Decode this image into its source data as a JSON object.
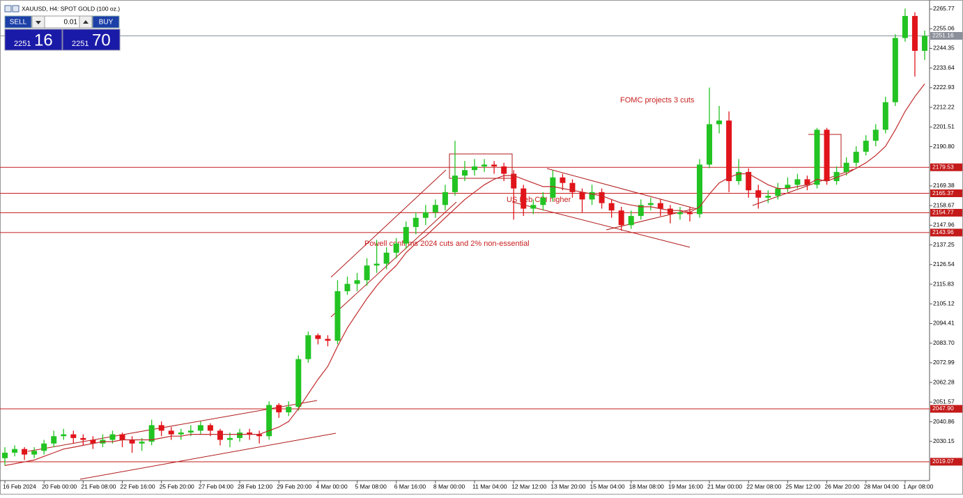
{
  "toolbar": {
    "title": "XAUUSD, H4:  SPOT GOLD (100 oz.)",
    "sell": "SELL",
    "buy": "BUY",
    "lot": "0.01",
    "bid_big": "2251",
    "bid_small": "16",
    "ask_big": "2251",
    "ask_small": "70"
  },
  "chart_data": {
    "type": "candlestick",
    "annotations": [
      "FOMC projects 3 cuts",
      "US Feb CPI higher",
      "Powell confirms 2024 cuts and 2% non-essential"
    ],
    "categories": [
      "16 Feb 2024",
      null,
      null,
      null,
      "20 Feb 00:00",
      null,
      null,
      null,
      "21 Feb 08:00",
      null,
      null,
      null,
      "22 Feb 16:00",
      null,
      null,
      null,
      "25 Feb 20:00",
      null,
      null,
      null,
      "27 Feb 04:00",
      null,
      null,
      null,
      "28 Feb 12:00",
      null,
      null,
      null,
      "29 Feb 20:00",
      null,
      null,
      null,
      "4 Mar 00:00",
      null,
      null,
      null,
      "5 Mar 08:00",
      null,
      null,
      null,
      "6 Mar 16:00",
      null,
      null,
      null,
      "8 Mar 00:00",
      null,
      null,
      null,
      "11 Mar 04:00",
      null,
      null,
      null,
      "12 Mar 12:00",
      null,
      null,
      null,
      "13 Mar 20:00",
      null,
      null,
      null,
      "15 Mar 04:00",
      null,
      null,
      null,
      "18 Mar 08:00",
      null,
      null,
      null,
      "19 Mar 16:00",
      null,
      null,
      null,
      "21 Mar 00:00",
      null,
      null,
      null,
      "22 Mar 08:00",
      null,
      null,
      null,
      "25 Mar 12:00",
      null,
      null,
      null,
      "26 Mar 20:00",
      null,
      null,
      null,
      "28 Mar 04:00",
      null,
      null,
      null,
      "1 Apr 08:00",
      null,
      null
    ],
    "open": [
      2021,
      2024,
      2026,
      2023,
      2025,
      2029,
      2033,
      2034,
      2032,
      2031,
      2029,
      2031,
      2034,
      2031,
      2029,
      2030,
      2039,
      2036,
      2034,
      2035,
      2036,
      2039,
      2036,
      2031,
      2032,
      2035,
      2034,
      2033,
      2050,
      2046,
      2049,
      2075,
      2088,
      2086,
      2085,
      2112,
      2116,
      2118,
      2126,
      2127,
      2133,
      2138,
      2147,
      2152,
      2155,
      2159,
      2166,
      2175,
      2178,
      2180,
      2181,
      2180,
      2176,
      2168,
      2157,
      2159,
      2163,
      2174,
      2171,
      2166,
      2162,
      2166,
      2160,
      2156,
      2148,
      2153,
      2159,
      2160,
      2157,
      2154,
      2155,
      2154,
      2181,
      2203,
      2205,
      2172,
      2177,
      2167,
      2163,
      2164,
      2168,
      2170,
      2173,
      2170,
      2200,
      2172,
      2177,
      2182,
      2188,
      2194,
      2200,
      2215,
      2250,
      2262,
      2243
    ],
    "high": [
      2027,
      2028,
      2027,
      2027,
      2031,
      2036,
      2037,
      2036,
      2034,
      2033,
      2034,
      2036,
      2035,
      2033,
      2032,
      2042,
      2041,
      2038,
      2037,
      2039,
      2041,
      2040,
      2037,
      2035,
      2037,
      2037,
      2036,
      2052,
      2051,
      2052,
      2077,
      2090,
      2089,
      2088,
      2118,
      2120,
      2122,
      2130,
      2140,
      2136,
      2141,
      2150,
      2155,
      2159,
      2162,
      2170,
      2194,
      2183,
      2184,
      2184,
      2183,
      2182,
      2178,
      2170,
      2162,
      2166,
      2178,
      2176,
      2173,
      2168,
      2170,
      2168,
      2162,
      2158,
      2156,
      2162,
      2163,
      2162,
      2159,
      2158,
      2158,
      2184,
      2223,
      2213,
      2210,
      2184,
      2179,
      2170,
      2167,
      2171,
      2174,
      2176,
      2175,
      2201,
      2201,
      2180,
      2185,
      2191,
      2197,
      2203,
      2218,
      2252,
      2266,
      2264,
      2254
    ],
    "low": [
      2017,
      2022,
      2020,
      2021,
      2023,
      2027,
      2031,
      2029,
      2028,
      2026,
      2027,
      2029,
      2027,
      2024,
      2025,
      2028,
      2033,
      2031,
      2031,
      2033,
      2034,
      2033,
      2028,
      2027,
      2030,
      2031,
      2029,
      2031,
      2043,
      2044,
      2047,
      2073,
      2083,
      2082,
      2083,
      2110,
      2112,
      2115,
      2122,
      2124,
      2130,
      2135,
      2143,
      2148,
      2152,
      2156,
      2164,
      2172,
      2175,
      2177,
      2176,
      2172,
      2151,
      2153,
      2154,
      2156,
      2161,
      2167,
      2163,
      2155,
      2159,
      2157,
      2152,
      2145,
      2146,
      2151,
      2156,
      2153,
      2149,
      2151,
      2150,
      2152,
      2179,
      2198,
      2166,
      2170,
      2163,
      2157,
      2160,
      2162,
      2166,
      2168,
      2167,
      2168,
      2170,
      2170,
      2175,
      2180,
      2186,
      2191,
      2198,
      2213,
      2248,
      2229,
      2238
    ],
    "close": [
      2024,
      2026,
      2023,
      2025,
      2029,
      2033,
      2034,
      2032,
      2031,
      2029,
      2031,
      2034,
      2031,
      2029,
      2030,
      2039,
      2036,
      2034,
      2035,
      2036,
      2039,
      2036,
      2031,
      2032,
      2035,
      2034,
      2033,
      2050,
      2046,
      2049,
      2075,
      2088,
      2086,
      2085,
      2112,
      2116,
      2118,
      2126,
      2127,
      2133,
      2138,
      2147,
      2152,
      2155,
      2159,
      2166,
      2175,
      2178,
      2180,
      2181,
      2180,
      2176,
      2168,
      2157,
      2159,
      2163,
      2174,
      2171,
      2166,
      2162,
      2166,
      2160,
      2156,
      2148,
      2153,
      2159,
      2160,
      2157,
      2154,
      2155,
      2154,
      2181,
      2203,
      2205,
      2172,
      2177,
      2167,
      2163,
      2164,
      2168,
      2170,
      2173,
      2170,
      2200,
      2172,
      2177,
      2182,
      2188,
      2194,
      2200,
      2215,
      2250,
      2262,
      2243,
      2251.16
    ],
    "ma": [
      2017,
      2018,
      2019,
      2020,
      2022,
      2024,
      2026,
      2027,
      2028,
      2029,
      2030,
      2030,
      2031,
      2031,
      2031,
      2031,
      2032,
      2033,
      2033,
      2034,
      2034,
      2034,
      2034,
      2034,
      2034,
      2034,
      2034,
      2036,
      2038,
      2041,
      2048,
      2056,
      2064,
      2071,
      2082,
      2092,
      2100,
      2108,
      2115,
      2121,
      2126,
      2133,
      2138,
      2142,
      2147,
      2152,
      2157,
      2162,
      2166,
      2170,
      2173,
      2175,
      2175,
      2173,
      2171,
      2169,
      2169,
      2168,
      2167,
      2166,
      2165,
      2164,
      2162,
      2160,
      2159,
      2158,
      2158,
      2157,
      2156,
      2156,
      2155,
      2158,
      2165,
      2171,
      2174,
      2176,
      2176,
      2173,
      2170,
      2168,
      2168,
      2169,
      2170,
      2173,
      2172,
      2174,
      2176,
      2179,
      2182,
      2186,
      2191,
      2200,
      2210,
      2218,
      2225
    ],
    "ylim": [
      2008.8,
      2270.7
    ],
    "yticks": [
      2265.77,
      2255.06,
      2244.35,
      2233.64,
      2222.93,
      2212.22,
      2201.51,
      {
        "value": 2190.8,
        "label": "2190.80"
      },
      2169.38,
      2158.67,
      2147.96,
      2137.25,
      2126.54,
      2115.83,
      2105.12,
      2094.41,
      {
        "value": 2083.7,
        "label": "2083.70"
      },
      2072.99,
      2062.28,
      2051.57,
      2040.86,
      2030.15
    ],
    "levels": [
      2179.53,
      2165.37,
      2154.77,
      2143.96,
      {
        "value": 2047.9,
        "label": "2047.90"
      },
      2019.07
    ],
    "last_price": 2251.16,
    "grid": false,
    "up_color": "#22c322",
    "down_color": "#e0141a",
    "ma_color": "#c0282a",
    "level_color": "#c41a1a",
    "last_color": "#8a8f99"
  }
}
